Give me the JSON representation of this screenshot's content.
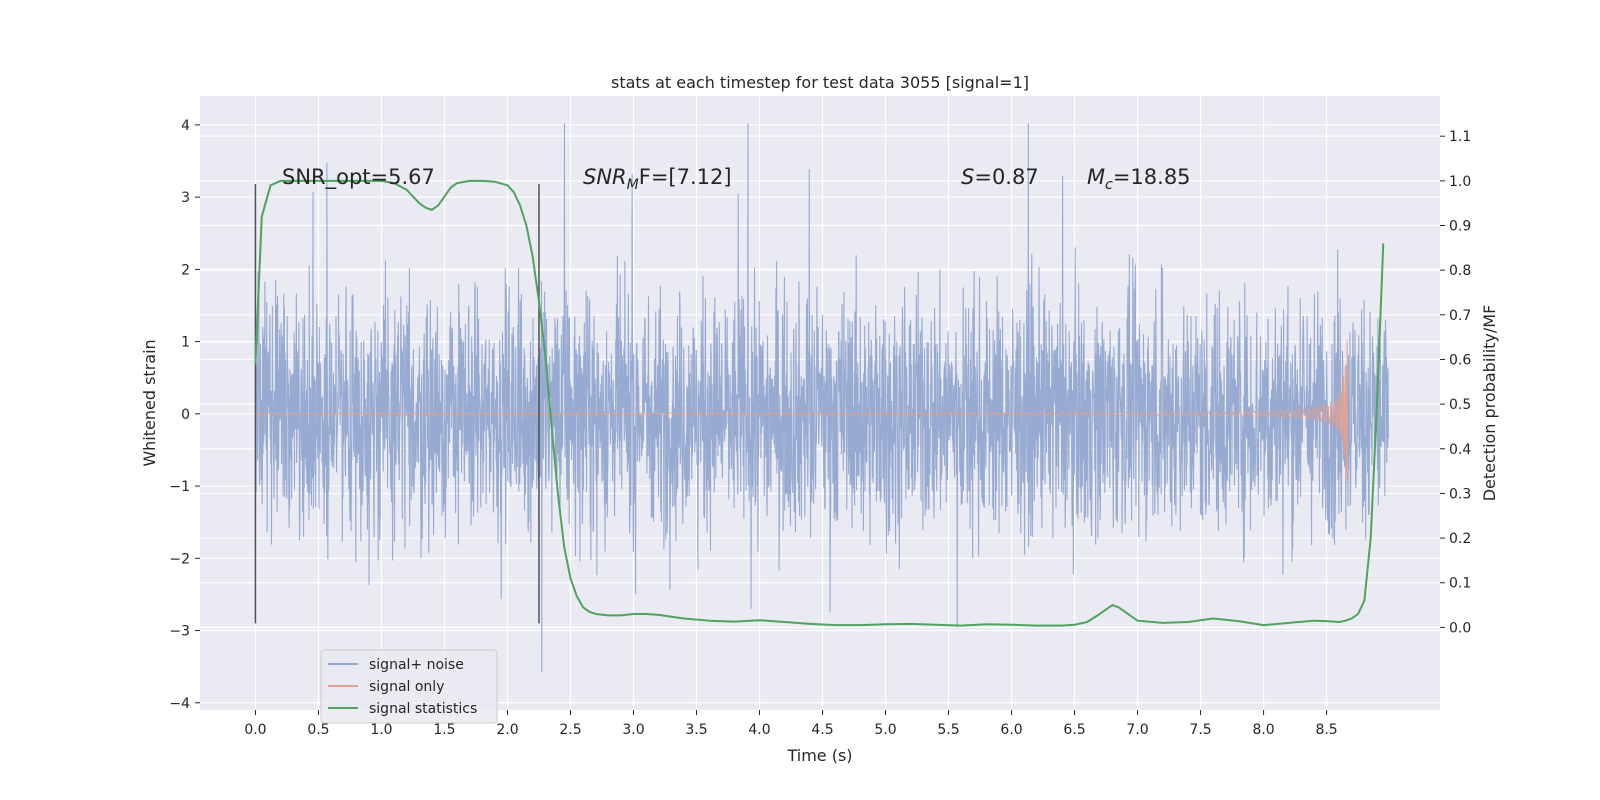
{
  "chart_data": {
    "type": "line",
    "title": "stats at each timestep for test data 3055 [signal=1]",
    "xlabel": "Time (s)",
    "ylabel": "Whitened strain",
    "ylabel_right": "Detection probability/MF",
    "xlim": [
      -0.44,
      9.4
    ],
    "ylim": [
      -4.1,
      4.4
    ],
    "ylim_right": [
      -0.185,
      1.19
    ],
    "x_ticks": [
      0.0,
      0.5,
      1.0,
      1.5,
      2.0,
      2.5,
      3.0,
      3.5,
      4.0,
      4.5,
      5.0,
      5.5,
      6.0,
      6.5,
      7.0,
      7.5,
      8.0,
      8.5
    ],
    "x_tick_labels": [
      "0.0",
      "0.5",
      "1.0",
      "1.5",
      "2.0",
      "2.5",
      "3.0",
      "3.5",
      "4.0",
      "4.5",
      "5.0",
      "5.5",
      "6.0",
      "6.5",
      "7.0",
      "7.5",
      "8.0",
      "8.5"
    ],
    "y_ticks": [
      -4,
      -3,
      -2,
      -1,
      0,
      1,
      2,
      3,
      4
    ],
    "y_tick_labels": [
      "−4",
      "−3",
      "−2",
      "−1",
      "0",
      "1",
      "2",
      "3",
      "4"
    ],
    "y2_ticks": [
      0.0,
      0.1,
      0.2,
      0.3,
      0.4,
      0.5,
      0.6,
      0.7,
      0.8,
      0.9,
      1.0,
      1.1
    ],
    "y2_tick_labels": [
      "0.0",
      "0.1",
      "0.2",
      "0.3",
      "0.4",
      "0.5",
      "0.6",
      "0.7",
      "0.8",
      "0.9",
      "1.0",
      "1.1"
    ],
    "grid": true,
    "legend_position": "lower-left",
    "annotations": {
      "snr_opt": "SNR_opt=5.67",
      "snr_mf_main": "SNR",
      "snr_mf_sub": "M",
      "snr_mf_rest": "F=[7.12]",
      "s_italic": "S",
      "s_rest": "=0.87",
      "mc_main": "M",
      "mc_sub": "c",
      "mc_rest": "=18.85"
    },
    "vertical_markers": [
      0.0,
      2.25
    ],
    "series": [
      {
        "name": "signal+ noise",
        "color": "#92a6cf",
        "x_range": [
          0.0,
          8.99
        ],
        "typical_amplitude": 1.3,
        "peak_max": 4.02,
        "peak_min": -3.75
      },
      {
        "name": "signal only",
        "color": "#e5a189",
        "x_range": [
          0.0,
          8.67
        ],
        "merger_time": 8.67,
        "peak_amplitude": 1.08
      },
      {
        "name": "signal statistics",
        "color": "#4fa35d",
        "axis": "right",
        "x": [
          0.0,
          0.05,
          0.12,
          0.2,
          0.4,
          0.6,
          0.8,
          1.0,
          1.1,
          1.2,
          1.3,
          1.35,
          1.4,
          1.45,
          1.5,
          1.55,
          1.6,
          1.7,
          1.8,
          1.9,
          2.0,
          2.05,
          2.1,
          2.15,
          2.2,
          2.25,
          2.3,
          2.35,
          2.4,
          2.45,
          2.5,
          2.55,
          2.6,
          2.65,
          2.7,
          2.8,
          2.9,
          3.0,
          3.1,
          3.2,
          3.4,
          3.6,
          3.8,
          4.0,
          4.2,
          4.4,
          4.6,
          4.8,
          5.0,
          5.2,
          5.4,
          5.6,
          5.8,
          6.0,
          6.2,
          6.4,
          6.5,
          6.6,
          6.7,
          6.8,
          6.85,
          6.9,
          7.0,
          7.2,
          7.4,
          7.6,
          7.8,
          8.0,
          8.2,
          8.4,
          8.5,
          8.6,
          8.65,
          8.7,
          8.75,
          8.8,
          8.85,
          8.9,
          8.95
        ],
        "y": [
          0.59,
          0.92,
          0.99,
          1.0,
          1.0,
          1.0,
          1.0,
          1.0,
          0.995,
          0.98,
          0.95,
          0.94,
          0.935,
          0.945,
          0.965,
          0.985,
          0.995,
          1.0,
          1.0,
          0.998,
          0.99,
          0.975,
          0.945,
          0.9,
          0.83,
          0.73,
          0.61,
          0.45,
          0.3,
          0.18,
          0.11,
          0.07,
          0.045,
          0.035,
          0.03,
          0.027,
          0.027,
          0.03,
          0.03,
          0.028,
          0.02,
          0.015,
          0.013,
          0.016,
          0.012,
          0.008,
          0.005,
          0.005,
          0.007,
          0.008,
          0.006,
          0.004,
          0.007,
          0.006,
          0.004,
          0.004,
          0.006,
          0.012,
          0.03,
          0.05,
          0.045,
          0.035,
          0.015,
          0.01,
          0.012,
          0.02,
          0.014,
          0.005,
          0.01,
          0.015,
          0.014,
          0.012,
          0.015,
          0.02,
          0.03,
          0.06,
          0.2,
          0.5,
          0.86
        ]
      }
    ]
  }
}
